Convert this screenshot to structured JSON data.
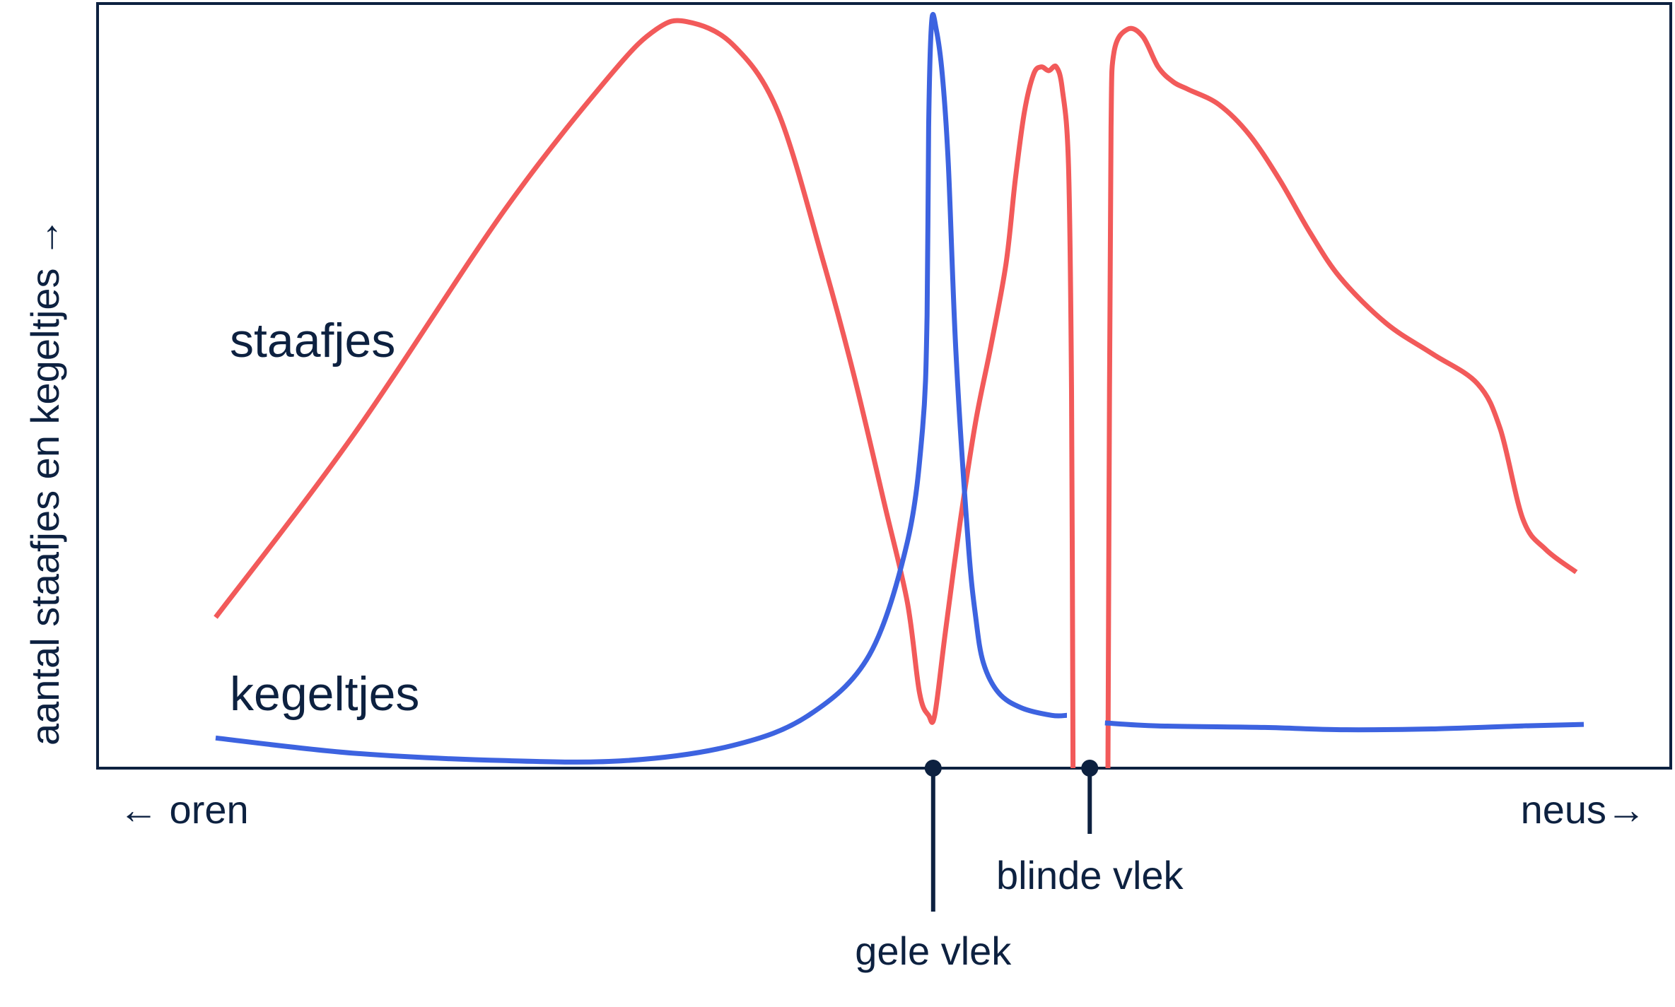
{
  "chart_data": {
    "type": "line",
    "title": "",
    "ylabel": "aantal staafjes en kegeltjes →",
    "xlabel_left": "← oren",
    "xlabel_right": "neus→",
    "grid": false,
    "x_range": [
      0,
      100
    ],
    "y_range": [
      0,
      100
    ],
    "series": [
      {
        "name": "staafjes",
        "color": "#f25a5a",
        "segments": [
          [
            [
              6,
              20
            ],
            [
              15,
              44
            ],
            [
              25,
              74
            ],
            [
              32,
              92
            ],
            [
              35,
              98
            ],
            [
              37,
              99
            ],
            [
              40,
              96
            ],
            [
              43,
              87
            ],
            [
              46,
              67
            ],
            [
              48,
              52
            ],
            [
              50,
              35
            ],
            [
              51.5,
              22
            ],
            [
              52.3,
              10
            ],
            [
              52.9,
              7
            ],
            [
              53.3,
              7
            ],
            [
              54,
              18
            ],
            [
              55,
              33
            ],
            [
              56,
              46
            ],
            [
              57,
              56
            ],
            [
              58,
              67
            ],
            [
              58.6,
              78
            ],
            [
              59.2,
              87
            ],
            [
              59.8,
              92
            ],
            [
              60.3,
              93
            ],
            [
              60.8,
              92.5
            ],
            [
              61.3,
              93
            ],
            [
              61.7,
              90
            ],
            [
              62.1,
              80
            ],
            [
              62.3,
              50
            ],
            [
              62.4,
              0
            ]
          ],
          [
            [
              64.7,
              0
            ],
            [
              64.8,
              50
            ],
            [
              64.9,
              85
            ],
            [
              65.1,
              95
            ],
            [
              66,
              98
            ],
            [
              67,
              97
            ],
            [
              68,
              93
            ],
            [
              69,
              91
            ],
            [
              70,
              90
            ],
            [
              72,
              88
            ],
            [
              74,
              84
            ],
            [
              76,
              78
            ],
            [
              78,
              71
            ],
            [
              80,
              65
            ],
            [
              83,
              59
            ],
            [
              86,
              55
            ],
            [
              89,
              51
            ],
            [
              90.5,
              45
            ],
            [
              92,
              33
            ],
            [
              93.5,
              29
            ],
            [
              95.5,
              26
            ]
          ]
        ]
      },
      {
        "name": "kegeltjes",
        "color": "#3d63e0",
        "segments": [
          [
            [
              6,
              4
            ],
            [
              15,
              2
            ],
            [
              25,
              1
            ],
            [
              33,
              1
            ],
            [
              40,
              3
            ],
            [
              45,
              7
            ],
            [
              49,
              15
            ],
            [
              51.5,
              30
            ],
            [
              52.5,
              45
            ],
            [
              52.8,
              60
            ],
            [
              52.9,
              85
            ],
            [
              53.1,
              99
            ],
            [
              53.4,
              98
            ],
            [
              53.8,
              92
            ],
            [
              54.2,
              80
            ],
            [
              54.7,
              55
            ],
            [
              55.5,
              30
            ],
            [
              56,
              20
            ],
            [
              56.5,
              14
            ],
            [
              57.5,
              10
            ],
            [
              59,
              8
            ],
            [
              61,
              7
            ],
            [
              62,
              7
            ]
          ],
          [
            [
              64.5,
              6
            ],
            [
              68,
              5.6
            ],
            [
              75,
              5.4
            ],
            [
              80,
              5.1
            ],
            [
              86,
              5.2
            ],
            [
              92,
              5.6
            ],
            [
              96,
              5.8
            ]
          ]
        ]
      }
    ],
    "markers": [
      {
        "name": "gele vlek",
        "x": 53.2
      },
      {
        "name": "blinde vlek",
        "x": 63.5
      }
    ]
  }
}
